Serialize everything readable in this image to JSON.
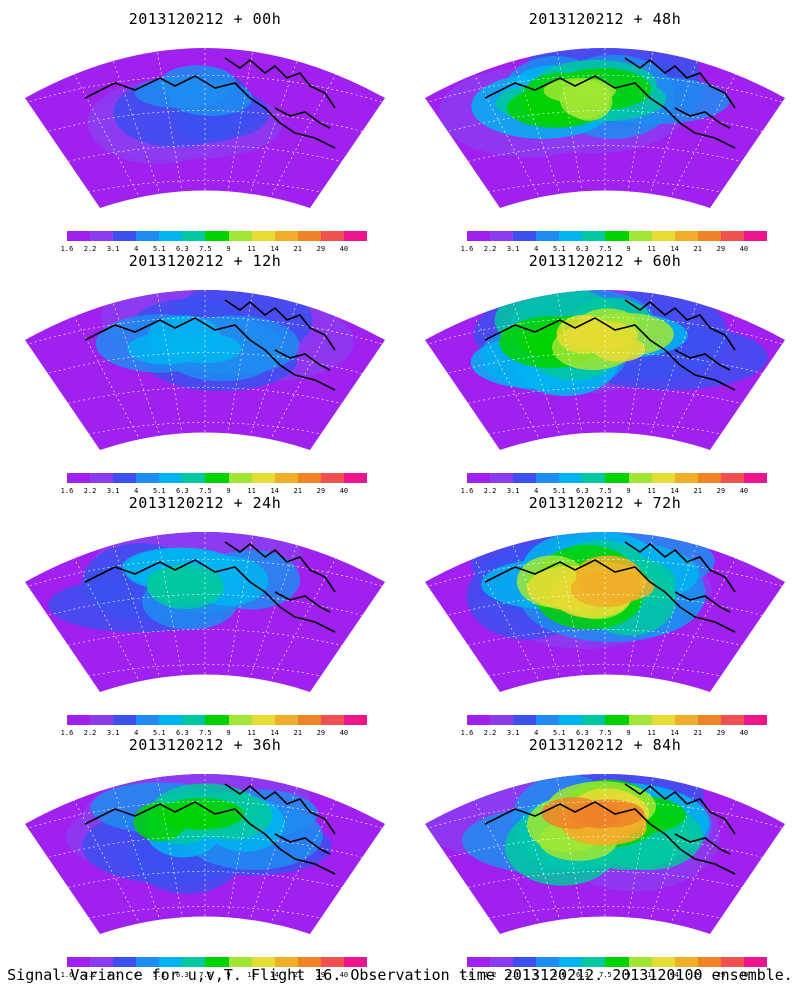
{
  "panels": [
    {
      "title": "2013120212 + 00h",
      "level": 0.22
    },
    {
      "title": "2013120212 + 48h",
      "level": 0.62
    },
    {
      "title": "2013120212 + 12h",
      "level": 0.35
    },
    {
      "title": "2013120212 + 60h",
      "level": 0.68
    },
    {
      "title": "2013120212 + 24h",
      "level": 0.45
    },
    {
      "title": "2013120212 + 72h",
      "level": 0.75
    },
    {
      "title": "2013120212 + 36h",
      "level": 0.52
    },
    {
      "title": "2013120212 + 84h",
      "level": 0.85
    }
  ],
  "colorbar": {
    "labels": [
      "1.6",
      "2.2",
      "3.1",
      "4",
      "5.1",
      "6.3",
      "7.5",
      "9",
      "11",
      "14",
      "21",
      "29",
      "40"
    ],
    "colors": [
      "#a020f0",
      "#8c3cf0",
      "#3c50f0",
      "#1e8cf0",
      "#00b4f0",
      "#00c8a0",
      "#00d200",
      "#a0e632",
      "#e6dc32",
      "#f0af28",
      "#f08228",
      "#f05050",
      "#f0148c"
    ]
  },
  "caption": "Signal Variance for u,v,T. Flight 16. Observation time 2013120212. 2013120100 ensemble."
}
